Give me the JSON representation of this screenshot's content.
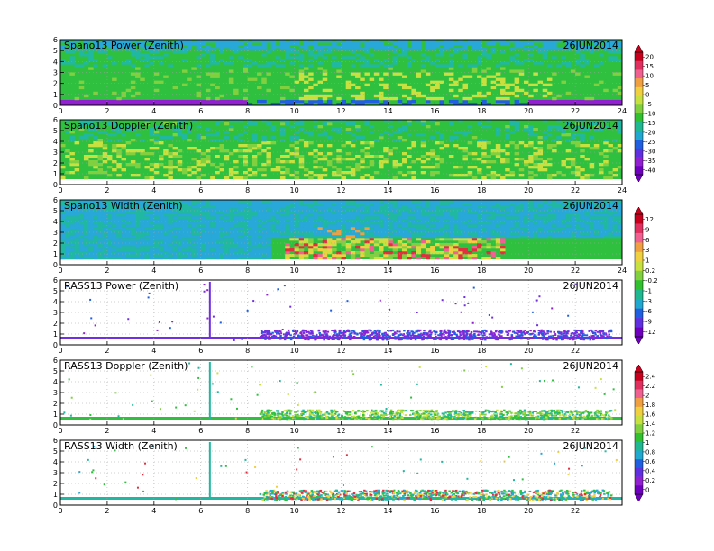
{
  "chart_data": [
    {
      "type": "heatmap",
      "title": "Spano13 Power (Zenith)",
      "date": "26JUN2014",
      "x": {
        "min": 0,
        "max": 24,
        "ticks": [
          0,
          2,
          4,
          6,
          8,
          10,
          12,
          14,
          16,
          18,
          20,
          22,
          24
        ]
      },
      "y": {
        "min": 0,
        "max": 6,
        "ticks": [
          0,
          1,
          2,
          3,
          4,
          5,
          6
        ]
      },
      "colorbar": {
        "labels": [
          20,
          15,
          10,
          5,
          0,
          -5,
          -10,
          -15,
          -20,
          -25,
          -30,
          -35,
          -40
        ],
        "colors": [
          "#c8001e",
          "#e03060",
          "#f06090",
          "#f0a040",
          "#f0d040",
          "#c8e040",
          "#80d040",
          "#30c030",
          "#20b890",
          "#20a8d0",
          "#2060e0",
          "#6030e0",
          "#9020d0",
          "#7000c0"
        ]
      },
      "grid": true
    },
    {
      "type": "heatmap",
      "title": "Spano13 Doppler (Zenith)",
      "date": "26JUN2014",
      "x": {
        "min": 0,
        "max": 24,
        "ticks": [
          0,
          2,
          4,
          6,
          8,
          10,
          12,
          14,
          16,
          18,
          20,
          22,
          24
        ]
      },
      "y": {
        "min": 0,
        "max": 6,
        "ticks": [
          0,
          1,
          2,
          3,
          4,
          5,
          6
        ]
      },
      "grid": true
    },
    {
      "type": "heatmap",
      "title": "Spano13 Width (Zenith)",
      "date": "26JUN2014",
      "x": {
        "min": 0,
        "max": 24,
        "ticks": [
          0,
          2,
          4,
          6,
          8,
          10,
          12,
          14,
          16,
          18,
          20,
          22,
          24
        ]
      },
      "y": {
        "min": 0,
        "max": 6,
        "ticks": [
          0,
          1,
          2,
          3,
          4,
          5,
          6
        ]
      },
      "colorbar": {
        "labels": [
          "12",
          "9",
          "6",
          "3",
          "1",
          "0.2",
          "-0.2",
          "-1",
          "-3",
          "-6",
          "-9",
          "-12"
        ],
        "colors": [
          "#c8001e",
          "#e03060",
          "#f06090",
          "#f0a040",
          "#f0d040",
          "#c8e040",
          "#80d040",
          "#30c030",
          "#20b890",
          "#20a8d0",
          "#2060e0",
          "#6030e0",
          "#7000c0"
        ]
      },
      "grid": true
    },
    {
      "type": "scatter",
      "title": "RASS13 Power (Zenith)",
      "date": "26JUN2014",
      "x": {
        "min": 0,
        "max": 24,
        "ticks": [
          0,
          2,
          4,
          6,
          8,
          10,
          12,
          14,
          16,
          18,
          20,
          22
        ]
      },
      "y": {
        "min": 0,
        "max": 6,
        "ticks": [
          0,
          1,
          2,
          3,
          4,
          5,
          6
        ]
      },
      "grid": true
    },
    {
      "type": "scatter",
      "title": "RASS13 Doppler (Zenith)",
      "date": "26JUN2014",
      "x": {
        "min": 0,
        "max": 24,
        "ticks": [
          0,
          2,
          4,
          6,
          8,
          10,
          12,
          14,
          16,
          18,
          20,
          22
        ]
      },
      "y": {
        "min": 0,
        "max": 6,
        "ticks": [
          0,
          1,
          2,
          3,
          4,
          5,
          6
        ]
      },
      "colorbar": {
        "labels": [
          "2.4",
          "2.2",
          "2",
          "1.8",
          "1.6",
          "1.4",
          "1.2",
          "1",
          "0.8",
          "0.6",
          "0.4",
          "0.2",
          "0"
        ],
        "colors": [
          "#c8001e",
          "#e03060",
          "#f06090",
          "#f0a040",
          "#f0d040",
          "#c8e040",
          "#80d040",
          "#30c030",
          "#20b890",
          "#20a8d0",
          "#2060e0",
          "#6030e0",
          "#9020d0",
          "#7000c0"
        ]
      },
      "grid": true
    },
    {
      "type": "scatter",
      "title": "RASS13 Width (Zenith)",
      "date": "26JUN2014",
      "x": {
        "min": 0,
        "max": 24,
        "ticks": [
          0,
          2,
          4,
          6,
          8,
          10,
          12,
          14,
          16,
          18,
          20,
          22
        ]
      },
      "y": {
        "min": 0,
        "max": 6,
        "ticks": [
          0,
          1,
          2,
          3,
          4,
          5,
          6
        ]
      },
      "grid": true
    }
  ]
}
